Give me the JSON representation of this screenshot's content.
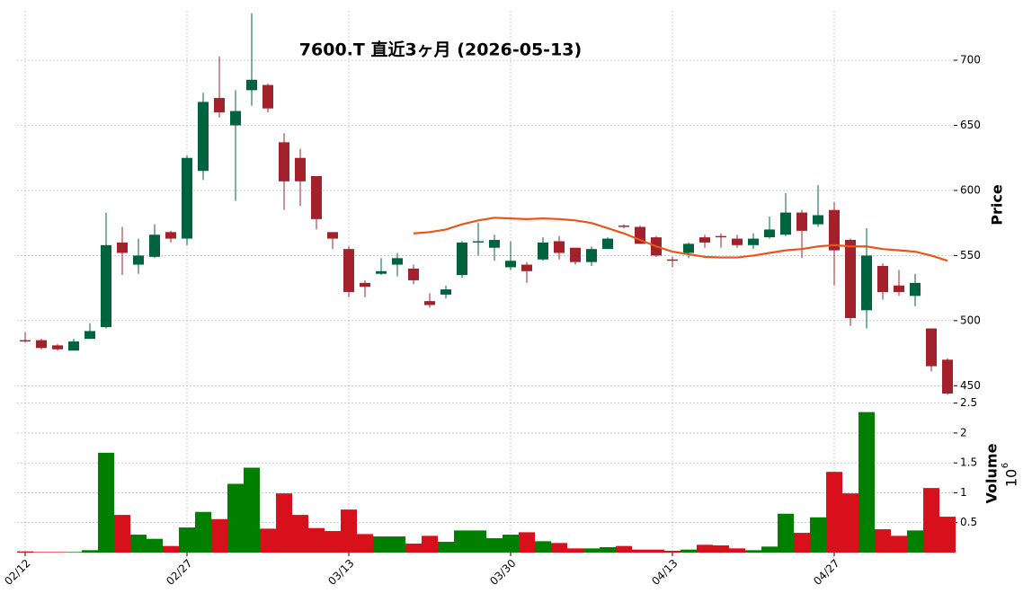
{
  "chart_data": [
    {
      "type": "candlestick",
      "title": "7600.T  直近3ヶ月  (2026-05-13)",
      "ylabel": "Price",
      "up_color": "#006340",
      "down_color": "#a3212b",
      "categories": [
        "02/12",
        null,
        null,
        null,
        null,
        null,
        null,
        null,
        null,
        null,
        "02/27",
        null,
        null,
        null,
        null,
        null,
        null,
        null,
        null,
        null,
        "03/13",
        null,
        null,
        null,
        null,
        null,
        null,
        null,
        null,
        null,
        "03/30",
        null,
        null,
        null,
        null,
        null,
        null,
        null,
        null,
        null,
        "04/13",
        null,
        null,
        null,
        null,
        null,
        null,
        null,
        null,
        null,
        "04/27",
        null,
        null,
        null,
        null,
        null,
        null,
        null
      ],
      "open": [
        485,
        485,
        481,
        477,
        486,
        495,
        560,
        543,
        549,
        568,
        563,
        615,
        671,
        650,
        677,
        681,
        637,
        625,
        611,
        568,
        555,
        529,
        536,
        543,
        540,
        515,
        520,
        535,
        560,
        556,
        541,
        543,
        547,
        561,
        556,
        545,
        555,
        573,
        572,
        564,
        547,
        552,
        564,
        565,
        563,
        558,
        564,
        566,
        583,
        574,
        585,
        562,
        508,
        542,
        527,
        519,
        494,
        470
      ],
      "high": [
        491,
        486,
        482,
        486,
        498,
        583,
        572,
        563,
        574,
        569,
        627,
        675,
        703,
        677,
        736,
        682,
        644,
        632,
        611,
        568,
        557,
        531,
        548,
        552,
        543,
        521,
        527,
        561,
        575,
        566,
        561,
        545,
        564,
        565,
        556,
        557,
        564,
        574,
        573,
        565,
        549,
        560,
        566,
        567,
        566,
        567,
        580,
        598,
        585,
        604,
        591,
        563,
        571,
        544,
        539,
        536,
        494,
        471
      ],
      "low": [
        483,
        478,
        477,
        477,
        486,
        494,
        535,
        536,
        548,
        560,
        558,
        608,
        656,
        592,
        665,
        660,
        585,
        588,
        570,
        555,
        518,
        518,
        535,
        534,
        528,
        510,
        517,
        533,
        550,
        546,
        539,
        529,
        546,
        547,
        543,
        542,
        555,
        571,
        559,
        549,
        541,
        548,
        556,
        556,
        556,
        555,
        563,
        565,
        548,
        572,
        527,
        496,
        494,
        516,
        519,
        511,
        461,
        443
      ],
      "close": [
        484,
        479,
        478,
        484,
        492,
        558,
        552,
        550,
        566,
        563,
        625,
        668,
        660,
        661,
        685,
        663,
        607,
        607,
        578,
        563,
        522,
        526,
        538,
        548,
        531,
        512,
        524,
        560,
        561,
        562,
        546,
        538,
        560,
        552,
        545,
        555,
        563,
        572,
        559,
        550,
        546,
        559,
        560,
        564,
        558,
        563,
        570,
        583,
        569,
        581,
        554,
        502,
        550,
        522,
        522,
        529,
        465,
        444
      ],
      "series": [
        {
          "color": "#e8561a",
          "values": [
            null,
            null,
            null,
            null,
            null,
            null,
            null,
            null,
            null,
            null,
            null,
            null,
            null,
            null,
            null,
            null,
            null,
            null,
            null,
            null,
            null,
            null,
            null,
            null,
            567,
            568,
            570,
            574,
            577,
            579,
            578.5,
            578,
            578.5,
            578,
            577,
            575,
            571,
            567,
            562,
            557,
            553,
            551,
            549,
            548.5,
            548.5,
            550,
            552,
            554,
            555,
            557,
            558,
            557,
            557,
            555,
            554,
            553,
            550,
            546
          ]
        }
      ],
      "ylim": [
        444,
        738
      ],
      "yticks": [
        450,
        500,
        550,
        600,
        650,
        700
      ],
      "grid": true
    },
    {
      "type": "bar",
      "ylabel": "Volume",
      "scale_base": "10",
      "scale_exponent": "6",
      "up_color": "#007f00",
      "down_color": "#d7101c",
      "values": [
        0.02,
        0.01,
        0.01,
        0.01,
        0.04,
        1.67,
        0.63,
        0.3,
        0.23,
        0.11,
        0.42,
        0.68,
        0.56,
        1.15,
        1.42,
        0.4,
        0.99,
        0.63,
        0.41,
        0.36,
        0.72,
        0.31,
        0.27,
        0.27,
        0.15,
        0.28,
        0.18,
        0.37,
        0.37,
        0.24,
        0.3,
        0.34,
        0.19,
        0.16,
        0.07,
        0.07,
        0.09,
        0.11,
        0.05,
        0.05,
        0.03,
        0.05,
        0.13,
        0.12,
        0.07,
        0.04,
        0.1,
        0.65,
        0.33,
        0.59,
        1.35,
        0.99,
        2.35,
        0.39,
        0.28,
        0.37,
        1.08,
        0.6
      ],
      "ylim": [
        0,
        2.57
      ],
      "yticks": [
        0.5,
        1.0,
        1.5,
        2.0,
        2.5
      ],
      "grid": true
    }
  ]
}
